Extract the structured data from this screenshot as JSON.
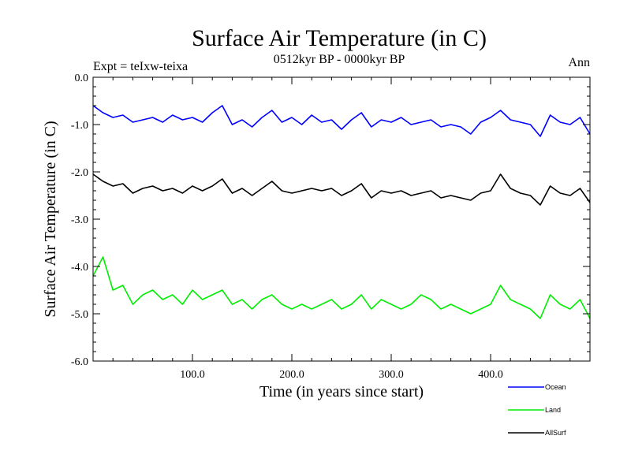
{
  "chart_data": {
    "type": "line",
    "title": "Surface Air Temperature (in C)",
    "subtitle": "0512kyr BP - 0000kyr BP",
    "left_label": "Expt = teIxw-teixa",
    "right_label": "Ann",
    "xlabel": "Time (in years since start)",
    "ylabel": "Surface Air Temperature (in C)",
    "xlim": [
      0,
      500
    ],
    "ylim": [
      -6.0,
      0.0
    ],
    "x_ticks": [
      100,
      200,
      300,
      400
    ],
    "x_tick_labels": [
      "100.0",
      "200.0",
      "300.0",
      "400.0"
    ],
    "y_ticks": [
      0,
      -1,
      -2,
      -3,
      -4,
      -5,
      -6
    ],
    "y_tick_labels": [
      "0.0",
      "-1.0",
      "-2.0",
      "-3.0",
      "-4.0",
      "-5.0",
      "-6.0"
    ],
    "legend_position": "bottom-right",
    "series": [
      {
        "name": "Ocean",
        "color": "#0000ff",
        "x": [
          0,
          10,
          20,
          30,
          40,
          50,
          60,
          70,
          80,
          90,
          100,
          110,
          120,
          130,
          140,
          150,
          160,
          170,
          180,
          190,
          200,
          210,
          220,
          230,
          240,
          250,
          260,
          270,
          280,
          290,
          300,
          310,
          320,
          330,
          340,
          350,
          360,
          370,
          380,
          390,
          400,
          410,
          420,
          430,
          440,
          450,
          460,
          470,
          480,
          490,
          500
        ],
        "y": [
          -0.6,
          -0.75,
          -0.85,
          -0.8,
          -0.95,
          -0.9,
          -0.85,
          -0.95,
          -0.8,
          -0.9,
          -0.85,
          -0.95,
          -0.75,
          -0.6,
          -1.0,
          -0.9,
          -1.05,
          -0.85,
          -0.7,
          -0.95,
          -0.85,
          -1.0,
          -0.8,
          -0.95,
          -0.9,
          -1.1,
          -0.9,
          -0.75,
          -1.05,
          -0.9,
          -0.95,
          -0.85,
          -1.0,
          -0.95,
          -0.9,
          -1.05,
          -1.0,
          -1.05,
          -1.2,
          -0.95,
          -0.85,
          -0.7,
          -0.9,
          -0.95,
          -1.0,
          -1.25,
          -0.8,
          -0.95,
          -1.0,
          -0.85,
          -1.2
        ]
      },
      {
        "name": "Land",
        "color": "#00ee00",
        "x": [
          0,
          10,
          20,
          30,
          40,
          50,
          60,
          70,
          80,
          90,
          100,
          110,
          120,
          130,
          140,
          150,
          160,
          170,
          180,
          190,
          200,
          210,
          220,
          230,
          240,
          250,
          260,
          270,
          280,
          290,
          300,
          310,
          320,
          330,
          340,
          350,
          360,
          370,
          380,
          390,
          400,
          410,
          420,
          430,
          440,
          450,
          460,
          470,
          480,
          490,
          500
        ],
        "y": [
          -4.2,
          -3.8,
          -4.5,
          -4.4,
          -4.8,
          -4.6,
          -4.5,
          -4.7,
          -4.6,
          -4.8,
          -4.5,
          -4.7,
          -4.6,
          -4.5,
          -4.8,
          -4.7,
          -4.9,
          -4.7,
          -4.6,
          -4.8,
          -4.9,
          -4.8,
          -4.9,
          -4.8,
          -4.7,
          -4.9,
          -4.8,
          -4.6,
          -4.9,
          -4.7,
          -4.8,
          -4.9,
          -4.8,
          -4.6,
          -4.7,
          -4.9,
          -4.8,
          -4.9,
          -5.0,
          -4.9,
          -4.8,
          -4.4,
          -4.7,
          -4.8,
          -4.9,
          -5.1,
          -4.6,
          -4.8,
          -4.9,
          -4.7,
          -5.1
        ]
      },
      {
        "name": "AllSurf",
        "color": "#000000",
        "x": [
          0,
          10,
          20,
          30,
          40,
          50,
          60,
          70,
          80,
          90,
          100,
          110,
          120,
          130,
          140,
          150,
          160,
          170,
          180,
          190,
          200,
          210,
          220,
          230,
          240,
          250,
          260,
          270,
          280,
          290,
          300,
          310,
          320,
          330,
          340,
          350,
          360,
          370,
          380,
          390,
          400,
          410,
          420,
          430,
          440,
          450,
          460,
          470,
          480,
          490,
          500
        ],
        "y": [
          -2.05,
          -2.2,
          -2.3,
          -2.25,
          -2.45,
          -2.35,
          -2.3,
          -2.4,
          -2.35,
          -2.45,
          -2.3,
          -2.4,
          -2.3,
          -2.15,
          -2.45,
          -2.35,
          -2.5,
          -2.35,
          -2.2,
          -2.4,
          -2.45,
          -2.4,
          -2.35,
          -2.4,
          -2.35,
          -2.5,
          -2.4,
          -2.25,
          -2.55,
          -2.4,
          -2.45,
          -2.4,
          -2.5,
          -2.45,
          -2.4,
          -2.55,
          -2.5,
          -2.55,
          -2.6,
          -2.45,
          -2.4,
          -2.05,
          -2.35,
          -2.45,
          -2.5,
          -2.7,
          -2.3,
          -2.45,
          -2.5,
          -2.35,
          -2.65
        ]
      }
    ]
  }
}
